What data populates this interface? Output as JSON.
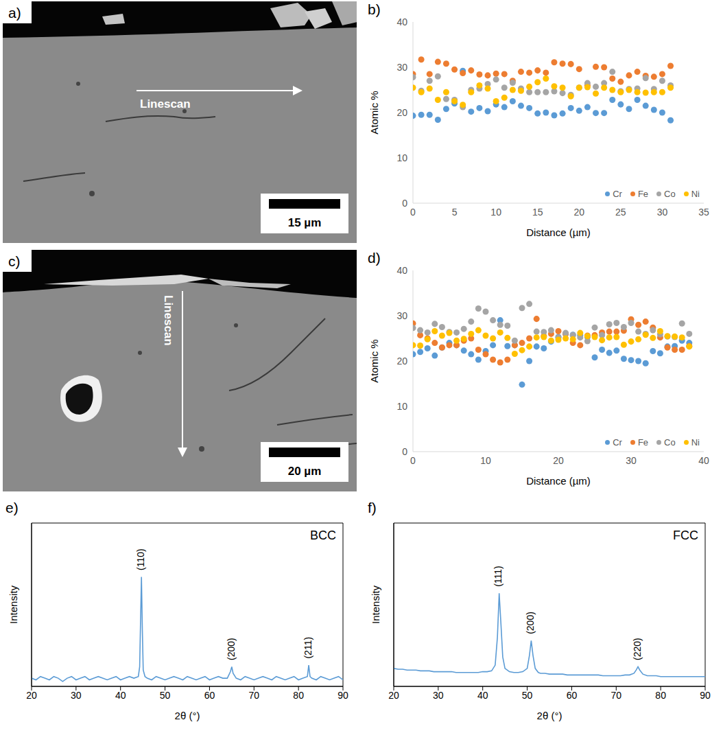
{
  "images": [
    {
      "panel": "a)",
      "arrow_label": "Linescan",
      "scale_bar": "15 µm"
    },
    {
      "panel": "c)",
      "arrow_label": "Linescan",
      "scale_bar": "20 µm"
    }
  ],
  "chart_data": [
    {
      "panel": "b)",
      "type": "scatter",
      "x_label": "Distance (µm)",
      "y_label": "Atomic %",
      "xlim": [
        0,
        35
      ],
      "xticks": [
        0,
        5,
        10,
        15,
        20,
        25,
        30,
        35
      ],
      "ylim": [
        0,
        40
      ],
      "yticks": [
        0,
        10,
        20,
        30,
        40
      ],
      "grid": false,
      "legend": "lower right",
      "x": [
        0,
        1,
        2,
        3,
        4,
        5,
        6,
        7,
        8,
        9,
        10,
        11,
        12,
        13,
        14,
        15,
        16,
        17,
        18,
        19,
        20,
        21,
        22,
        23,
        24,
        25,
        26,
        27,
        28,
        29,
        30,
        31
      ],
      "series": [
        {
          "name": "Cr",
          "color": "#5b9bd5",
          "values": [
            19.3,
            19.5,
            19.5,
            18.4,
            20.8,
            22,
            29.2,
            20.2,
            21,
            20.3,
            21.8,
            21.2,
            22.5,
            21.5,
            21,
            19.8,
            20,
            19.4,
            19.8,
            21,
            20.4,
            21.2,
            19.9,
            19.9,
            22.8,
            21.8,
            20.8,
            22.8,
            21.5,
            20.6,
            20,
            18.3
          ]
        },
        {
          "name": "Fe",
          "color": "#ed7d31",
          "values": [
            28.5,
            31.7,
            28.5,
            31.2,
            30.8,
            29.5,
            28.7,
            29.3,
            28.4,
            28.2,
            28.6,
            28.5,
            27,
            29,
            28.8,
            29.3,
            28.8,
            31.1,
            30.8,
            30.7,
            29.6,
            26,
            30.1,
            30,
            27.5,
            26.8,
            28.2,
            29,
            28.1,
            27.9,
            28.5,
            30.3
          ]
        },
        {
          "name": "Co",
          "color": "#a5a5a5",
          "values": [
            27.8,
            24.8,
            27,
            28,
            23,
            22.8,
            21.2,
            25,
            25.3,
            26.3,
            27.3,
            25.5,
            26.6,
            25.3,
            24.5,
            24.5,
            24.5,
            24.7,
            24.3,
            23.9,
            25.5,
            26.5,
            25.7,
            26.5,
            29,
            24.7,
            25.2,
            25.3,
            27.6,
            25.2,
            27,
            26
          ]
        },
        {
          "name": "Ni",
          "color": "#ffc000",
          "values": [
            25.5,
            24.5,
            25.3,
            22.8,
            24.5,
            22.5,
            21.7,
            24.5,
            26,
            25.3,
            22.5,
            23.3,
            25,
            24.8,
            25.7,
            26.7,
            27.5,
            25.8,
            25.5,
            23.6,
            25.5,
            25.6,
            24.2,
            25.5,
            25,
            24.5,
            25,
            24.5,
            24.4,
            24.5,
            24.5,
            25.5
          ]
        }
      ]
    },
    {
      "panel": "d)",
      "type": "scatter",
      "x_label": "Distance (µm)",
      "y_label": "Atomic %",
      "xlim": [
        0,
        40
      ],
      "xticks": [
        0,
        10,
        20,
        30,
        40
      ],
      "ylim": [
        0,
        40
      ],
      "yticks": [
        0,
        10,
        20,
        30,
        40
      ],
      "grid": false,
      "legend": "lower right",
      "x": [
        0,
        1,
        2,
        3,
        4,
        5,
        6,
        7,
        8,
        9,
        10,
        11,
        12,
        13,
        14,
        15,
        16,
        17,
        18,
        19,
        20,
        21,
        22,
        23,
        24,
        25,
        26,
        27,
        28,
        29,
        30,
        31,
        32,
        33,
        34,
        35,
        36,
        37,
        38
      ],
      "series": [
        {
          "name": "Cr",
          "color": "#5b9bd5",
          "values": [
            21.5,
            22,
            22.8,
            21.2,
            23,
            24,
            23.5,
            22.3,
            21.5,
            20.3,
            22.2,
            23.5,
            29,
            23.3,
            23.5,
            14.8,
            20,
            23.2,
            22.8,
            24.3,
            25.3,
            26,
            25.8,
            25.7,
            25.3,
            20.8,
            22.5,
            21.8,
            22.3,
            20.5,
            20.2,
            20,
            19.5,
            22.2,
            21.7,
            23.2,
            23.3,
            24.5,
            24
          ]
        },
        {
          "name": "Fe",
          "color": "#ed7d31",
          "values": [
            28.3,
            25.7,
            25,
            24,
            23,
            23.5,
            23.5,
            24.5,
            25,
            22.5,
            21.5,
            20.3,
            19.7,
            20.3,
            23.5,
            24,
            25,
            29.3,
            25.5,
            26,
            26.6,
            26,
            24,
            23.5,
            25.6,
            25.7,
            26.3,
            26.5,
            26.5,
            26.7,
            29.2,
            28,
            28.7,
            27.4,
            25.2,
            23,
            22.5,
            22.5,
            23.3
          ]
        },
        {
          "name": "Co",
          "color": "#a5a5a5",
          "values": [
            27.3,
            26.8,
            26.3,
            28.2,
            27.5,
            26.4,
            26.3,
            27.1,
            28.7,
            31.6,
            30.9,
            29,
            28,
            27.8,
            24.5,
            31.7,
            32.6,
            26.5,
            26.4,
            26.8,
            25.2,
            26.2,
            25.7,
            25.2,
            24.4,
            27.4,
            25.7,
            28.1,
            28.4,
            27.5,
            28.4,
            26.5,
            26,
            26.8,
            25.9,
            25.4,
            25.3,
            28.3,
            26
          ]
        },
        {
          "name": "Ni",
          "color": "#ffc000",
          "values": [
            23.5,
            23.4,
            24.8,
            26.6,
            25.6,
            26.2,
            24.5,
            24.9,
            26,
            26.8,
            25.6,
            25,
            26.3,
            25.1,
            21.6,
            22.4,
            23.2,
            25.2,
            25.3,
            24.5,
            24.7,
            25,
            24.8,
            26.2,
            25.5,
            25.3,
            24.6,
            25.2,
            25.3,
            23.6,
            24.3,
            24.8,
            25.8,
            25.1,
            26.6,
            25.5,
            25.4,
            25.2,
            23.2
          ]
        }
      ]
    },
    {
      "panel": "e)",
      "type": "line",
      "title": "BCC",
      "x_label": "2θ (°)",
      "y_label": "Intensity",
      "xlim": [
        20,
        90
      ],
      "xticks": [
        20,
        30,
        40,
        50,
        60,
        70,
        80,
        90
      ],
      "ylim": [
        0,
        100
      ],
      "tick_labels": "x",
      "color": "#5b9bd5",
      "x": [
        20,
        21,
        22,
        23,
        24,
        25,
        26,
        27,
        28,
        29,
        30,
        31,
        32,
        33,
        34,
        35,
        36,
        37,
        38,
        39,
        40,
        41,
        42,
        43,
        44,
        44.3,
        44.5,
        44.7,
        44.9,
        45.1,
        45.5,
        46,
        47,
        48,
        49,
        50,
        51,
        52,
        53,
        54,
        55,
        56,
        57,
        58,
        59,
        60,
        61,
        62,
        63,
        64,
        64.7,
        65,
        65.3,
        66,
        67,
        68,
        69,
        70,
        71,
        72,
        73,
        74,
        75,
        76,
        77,
        78,
        79,
        80,
        81,
        82,
        82.3,
        82.6,
        83,
        84,
        85,
        86,
        87,
        88,
        89,
        90
      ],
      "values": [
        5,
        4,
        6,
        5,
        4,
        6,
        5,
        3,
        5,
        6,
        4,
        5,
        6,
        4,
        5,
        6,
        5,
        4,
        5,
        6,
        4,
        5,
        6,
        5,
        6,
        12,
        40,
        67,
        35,
        10,
        6,
        5,
        4,
        6,
        5,
        4,
        5,
        6,
        5,
        4,
        6,
        5,
        4,
        5,
        6,
        4,
        5,
        6,
        5,
        5,
        9,
        12,
        8,
        5,
        4,
        6,
        5,
        4,
        5,
        6,
        5,
        4,
        6,
        5,
        4,
        5,
        6,
        4,
        5,
        6,
        13,
        6,
        5,
        4,
        6,
        5,
        4,
        5,
        6,
        4
      ],
      "annotations": [
        {
          "text": "(110)",
          "x": 44.7,
          "y": 71
        },
        {
          "text": "(200)",
          "x": 65,
          "y": 16
        },
        {
          "text": "(211)",
          "x": 82.3,
          "y": 17
        }
      ]
    },
    {
      "panel": "f)",
      "type": "line",
      "title": "FCC",
      "x_label": "2θ (°)",
      "y_label": "Intensity",
      "xlim": [
        20,
        90
      ],
      "xticks": [
        20,
        30,
        40,
        50,
        60,
        70,
        80,
        90
      ],
      "ylim": [
        0,
        100
      ],
      "tick_labels": "x",
      "color": "#5b9bd5",
      "x": [
        20,
        21,
        22,
        23,
        24,
        25,
        26,
        27,
        28,
        29,
        30,
        31,
        32,
        33,
        34,
        35,
        36,
        37,
        38,
        39,
        40,
        41,
        42,
        42.8,
        43.3,
        43.7,
        44.1,
        44.5,
        45,
        45.5,
        46,
        47,
        48,
        49,
        50,
        50.5,
        50.9,
        51.3,
        51.8,
        52.5,
        53,
        54,
        55,
        56,
        57,
        58,
        59,
        60,
        61,
        62,
        63,
        64,
        65,
        66,
        67,
        68,
        69,
        70,
        71,
        72,
        73,
        74,
        74.5,
        74.9,
        75.3,
        76,
        77,
        78,
        79,
        80,
        81,
        82,
        83,
        84,
        85,
        86,
        87,
        88,
        89,
        90
      ],
      "values": [
        11,
        10.5,
        10.5,
        10,
        10,
        10,
        9.5,
        9.5,
        9.5,
        9,
        9,
        9,
        9,
        9,
        8.5,
        8.5,
        8.5,
        8.5,
        8.5,
        8.5,
        9,
        9,
        9.5,
        13,
        30,
        57,
        38,
        18,
        11,
        10,
        9,
        8.5,
        8.5,
        9,
        11,
        19,
        28,
        19,
        11,
        8.5,
        8,
        8,
        7.5,
        7.5,
        7.5,
        7.5,
        7,
        7,
        7,
        7,
        7,
        7,
        7,
        7,
        6.5,
        6.5,
        6.5,
        6.5,
        6.5,
        7,
        7,
        8,
        10,
        12,
        10,
        7.5,
        6.5,
        6.5,
        6.5,
        6,
        6,
        6,
        6,
        6,
        6,
        6,
        6,
        6,
        6,
        6
      ],
      "annotations": [
        {
          "text": "(111)",
          "x": 43.7,
          "y": 61
        },
        {
          "text": "(200)",
          "x": 50.9,
          "y": 32
        },
        {
          "text": "(220)",
          "x": 74.9,
          "y": 16
        }
      ]
    }
  ]
}
